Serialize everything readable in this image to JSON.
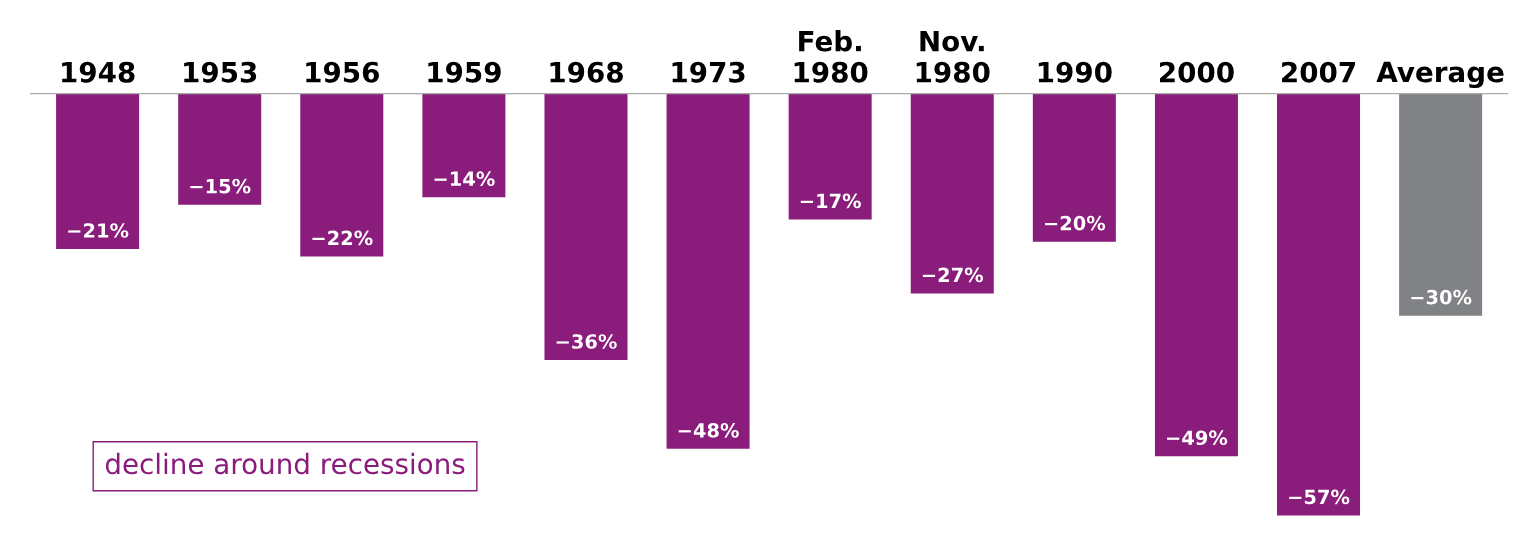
{
  "chart_data": {
    "type": "bar",
    "categories": [
      "1948",
      "1953",
      "1956",
      "1959",
      "1968",
      "1973",
      "Feb.\n1980",
      "Nov.\n1980",
      "1990",
      "2000",
      "2007",
      "Average"
    ],
    "values": [
      -21,
      -15,
      -22,
      -14,
      -36,
      -48,
      -17,
      -27,
      -20,
      -49,
      -57,
      -30
    ],
    "colors": [
      "#8a1c7c",
      "#8a1c7c",
      "#8a1c7c",
      "#8a1c7c",
      "#8a1c7c",
      "#8a1c7c",
      "#8a1c7c",
      "#8a1c7c",
      "#8a1c7c",
      "#8a1c7c",
      "#8a1c7c",
      "#808285"
    ],
    "value_labels": [
      "−21%",
      "−15%",
      "−22%",
      "−14%",
      "−36%",
      "−48%",
      "−17%",
      "−27%",
      "−20%",
      "−49%",
      "−57%",
      "−30%"
    ],
    "annotations": [
      "decline around recessions"
    ],
    "grid": false,
    "legend": false
  }
}
